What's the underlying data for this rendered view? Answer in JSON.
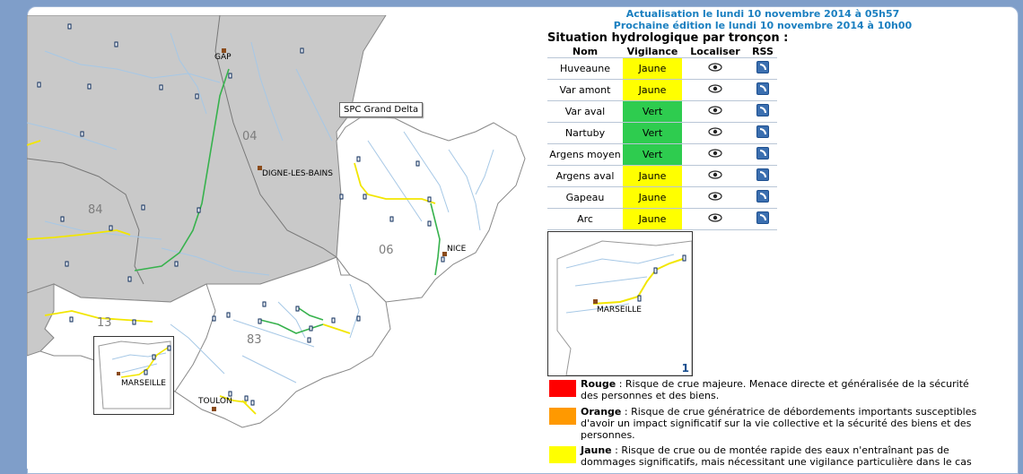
{
  "header": {
    "update_line": "Actualisation le lundi 10 novembre 2014 à 05h57",
    "next_edition_line": "Prochaine édition le lundi 10 novembre 2014 à 10h00"
  },
  "section_title": "Situation hydrologique par tronçon :",
  "table": {
    "headers": [
      "Nom",
      "Vigilance",
      "Localiser",
      "RSS"
    ],
    "rows": [
      {
        "nom": "Huveaune",
        "vigilance": "Jaune",
        "color": "#ffff00"
      },
      {
        "nom": "Var amont",
        "vigilance": "Jaune",
        "color": "#ffff00"
      },
      {
        "nom": "Var aval",
        "vigilance": "Vert",
        "color": "#2ecc4f"
      },
      {
        "nom": "Nartuby",
        "vigilance": "Vert",
        "color": "#2ecc4f"
      },
      {
        "nom": "Argens moyen",
        "vigilance": "Vert",
        "color": "#2ecc4f"
      },
      {
        "nom": "Argens aval",
        "vigilance": "Jaune",
        "color": "#ffff00"
      },
      {
        "nom": "Gapeau",
        "vigilance": "Jaune",
        "color": "#ffff00"
      },
      {
        "nom": "Arc",
        "vigilance": "Jaune",
        "color": "#ffff00"
      }
    ]
  },
  "map": {
    "spc_label": "SPC Grand Delta",
    "cities": [
      "GAP",
      "DIGNE-LES-BAINS",
      "NICE",
      "MARSEILLE",
      "TOULON"
    ],
    "departments": [
      "04",
      "84",
      "06",
      "13",
      "83"
    ]
  },
  "inset": {
    "city": "MARSEILLE",
    "number": "1"
  },
  "legend": [
    {
      "label": "Rouge",
      "text": " : Risque de crue majeure. Menace directe et généralisée de la sécurité des personnes et des biens.",
      "color": "#ff0000"
    },
    {
      "label": "Orange",
      "text": " : Risque de crue génératrice de débordements importants susceptibles d'avoir un impact significatif sur la vie collective et la sécurité des biens et des personnes.",
      "color": "#ff9900"
    },
    {
      "label": "Jaune",
      "text": " : Risque de crue ou de montée rapide des eaux n'entraînant pas de dommages significatifs, mais nécessitant une vigilance particulière dans le cas",
      "color": "#ffff00"
    }
  ],
  "colors": {
    "header_blue": "#1a7fc0",
    "outside_gray": "#c8c8c8",
    "water_blue": "#a6c8e6"
  }
}
